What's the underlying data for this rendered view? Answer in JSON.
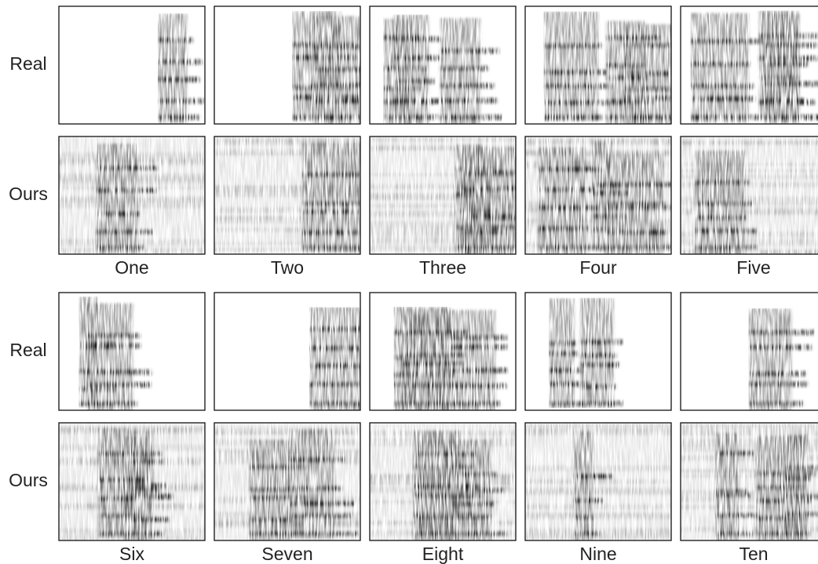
{
  "blocks": [
    {
      "rows": [
        "Real",
        "Ours"
      ],
      "columns": [
        "One",
        "Two",
        "Three",
        "Four",
        "Five"
      ]
    },
    {
      "rows": [
        "Real",
        "Ours"
      ],
      "columns": [
        "Six",
        "Seven",
        "Eight",
        "Nine",
        "Ten"
      ]
    }
  ]
}
